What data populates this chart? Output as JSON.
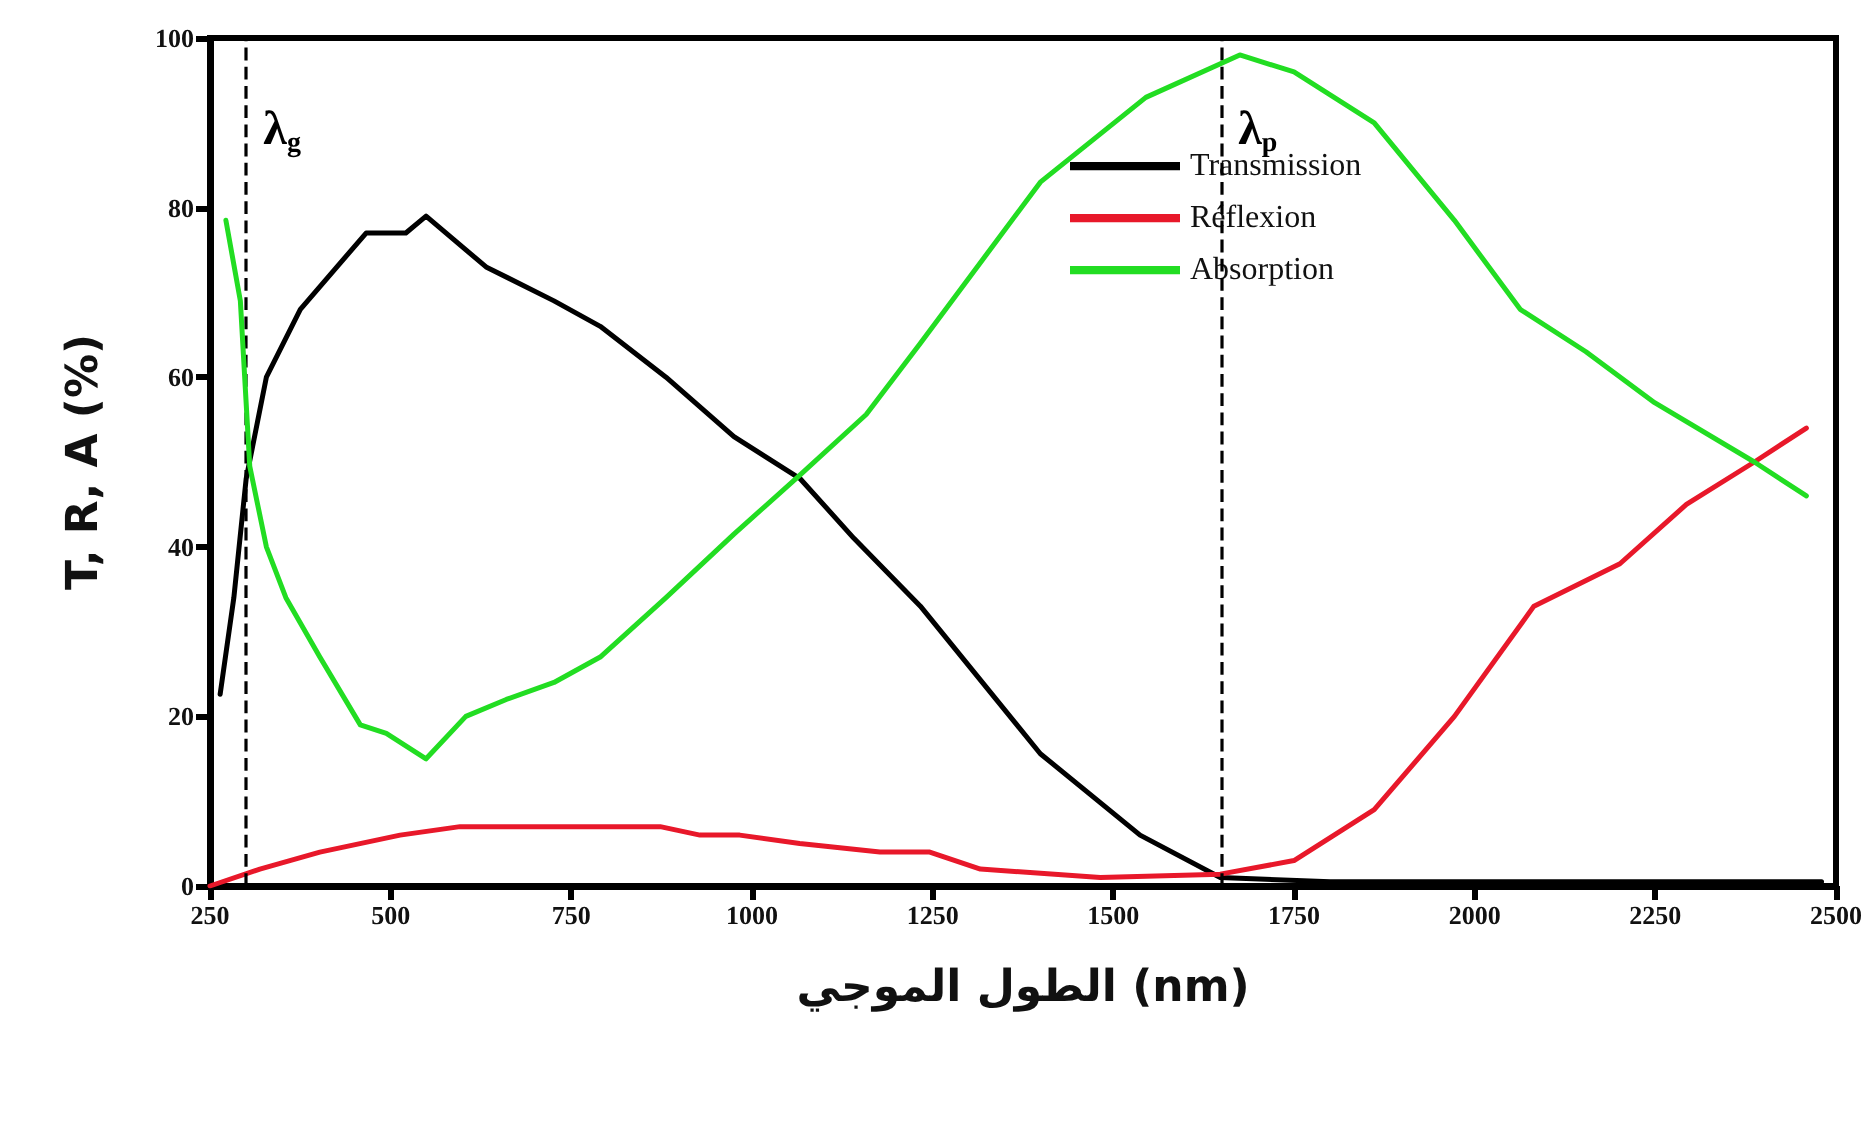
{
  "chart_data": {
    "type": "line",
    "xlabel": "الطول الموجي (nm)",
    "ylabel": "T, R, A (%)",
    "xlim": [
      250,
      2500
    ],
    "xticks": [
      250,
      500,
      750,
      1000,
      1250,
      1500,
      1750,
      2000,
      2250,
      2500
    ],
    "ylim": [
      0,
      100
    ],
    "yticks": [
      0,
      20,
      40,
      60,
      80,
      100
    ],
    "grid": false,
    "legend": "top right",
    "marker": "none",
    "line_style": "solid",
    "ref_lines": [
      {
        "axis": "x",
        "value": 300,
        "label": "λ$_{g}$",
        "color": "#000000",
        "line_style": "dashed"
      },
      {
        "axis": "x",
        "value": 1650,
        "label": "λ$_{p}$",
        "color": "#000000",
        "line_style": "dashed"
      }
    ],
    "series": [
      {
        "name": "Transmission",
        "color": "#000000",
        "x": [
          264,
          283,
          300,
          328,
          375,
          466,
          521,
          549,
          632,
          726,
          790,
          881,
          975,
          1067,
          1141,
          1233,
          1399,
          1537,
          1648,
          1800,
          2000,
          2250,
          2480
        ],
        "values": [
          22.6,
          34,
          48,
          60,
          68,
          77,
          77,
          79,
          73,
          69,
          66,
          60,
          53,
          48,
          41,
          33,
          15.6,
          6,
          1,
          0.5,
          0.5,
          0.5,
          0.5
        ]
      },
      {
        "name": "Réflexion",
        "color": "#e8182a",
        "x": [
          250,
          319,
          402,
          513,
          596,
          734,
          873,
          928,
          983,
          1066,
          1177,
          1246,
          1316,
          1482,
          1648,
          1750,
          1861,
          1972,
          2082,
          2201,
          2293,
          2387,
          2459
        ],
        "values": [
          0,
          2,
          4,
          6,
          7,
          7,
          7,
          6,
          6,
          5,
          4,
          4,
          2,
          1,
          1.4,
          3,
          9,
          20,
          33,
          38,
          45,
          50,
          54
        ]
      },
      {
        "name": "Absorption",
        "color": "#22dd22",
        "x": [
          272,
          292,
          305,
          328,
          355,
          402,
          458,
          494,
          549,
          604,
          660,
          726,
          790,
          881,
          975,
          1067,
          1158,
          1233,
          1399,
          1545,
          1675,
          1750,
          1861,
          1972,
          2063,
          2154,
          2249,
          2387,
          2459
        ],
        "values": [
          78.5,
          69,
          49.5,
          40,
          34,
          27,
          19,
          18,
          15,
          20,
          22,
          24,
          27,
          34,
          41.5,
          48.5,
          55.6,
          64,
          83,
          93,
          98,
          96,
          90,
          78.5,
          68,
          63,
          57,
          50,
          46
        ]
      }
    ]
  }
}
